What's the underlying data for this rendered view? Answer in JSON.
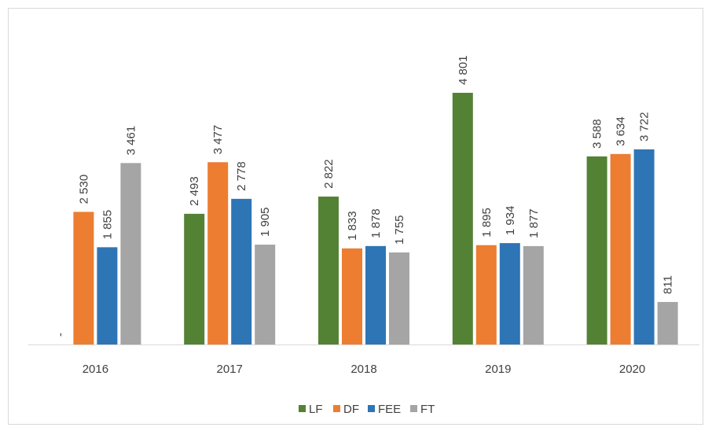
{
  "chart_data": {
    "type": "bar",
    "categories": [
      "2016",
      "2017",
      "2018",
      "2019",
      "2020"
    ],
    "series": [
      {
        "name": "LF",
        "color": "#548235",
        "values": [
          0,
          2493,
          2822,
          4801,
          3588
        ],
        "value_labels": [
          "-",
          "2 493",
          "2 822",
          "4 801",
          "3 588"
        ]
      },
      {
        "name": "DF",
        "color": "#ed7d31",
        "values": [
          2530,
          3477,
          1833,
          1895,
          3634
        ],
        "value_labels": [
          "2 530",
          "3 477",
          "1 833",
          "1 895",
          "3 634"
        ]
      },
      {
        "name": "FEE",
        "color": "#2e75b6",
        "values": [
          1855,
          2778,
          1878,
          1934,
          3722
        ],
        "value_labels": [
          "1 855",
          "2 778",
          "1 878",
          "1 934",
          "3 722"
        ]
      },
      {
        "name": "FT",
        "color": "#a5a5a5",
        "values": [
          3461,
          1905,
          1755,
          1877,
          811
        ],
        "value_labels": [
          "3 461",
          "1 905",
          "1 755",
          "1 877",
          "811"
        ]
      }
    ],
    "legend": "bottom"
  }
}
